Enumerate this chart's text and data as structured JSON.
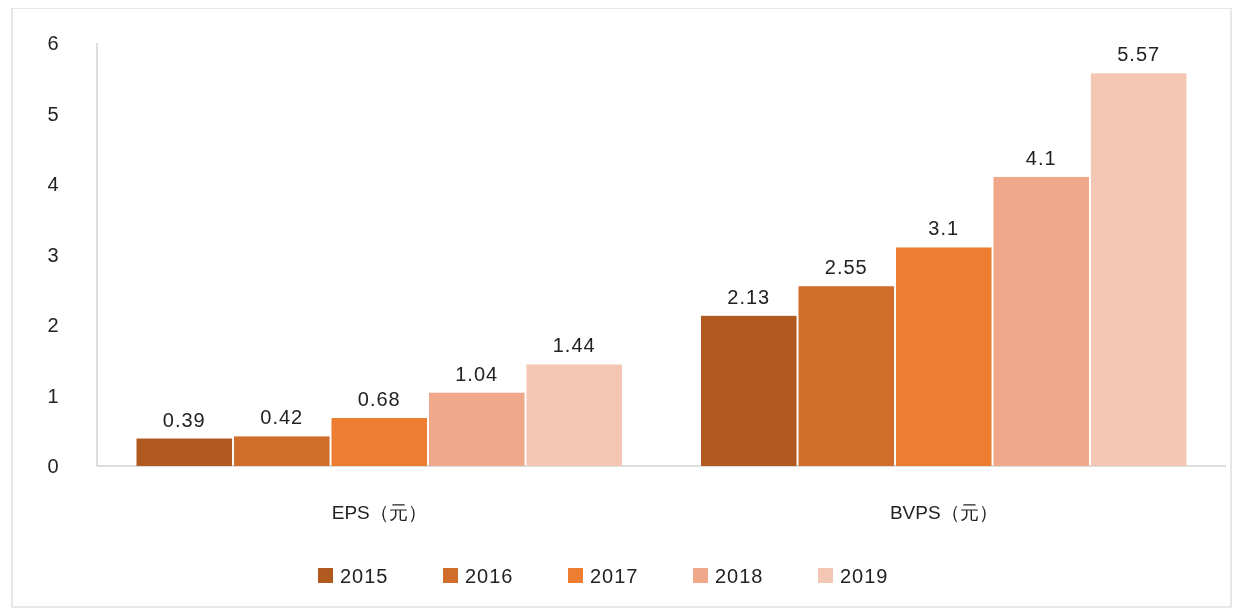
{
  "chart_data": {
    "type": "bar",
    "categories": [
      "EPS（元）",
      "BVPS（元）"
    ],
    "series": [
      {
        "name": "2015",
        "color": "#b05a20",
        "values": [
          0.39,
          2.13
        ]
      },
      {
        "name": "2016",
        "color": "#d06d2b",
        "values": [
          0.42,
          2.55
        ]
      },
      {
        "name": "2017",
        "color": "#ed7d31",
        "values": [
          0.68,
          3.1
        ]
      },
      {
        "name": "2018",
        "color": "#f0a88a",
        "values": [
          1.04,
          4.1
        ]
      },
      {
        "name": "2019",
        "color": "#f4c6b4",
        "values": [
          1.44,
          5.57
        ]
      }
    ],
    "ylim": [
      0,
      6
    ],
    "yticks": [
      0,
      1,
      2,
      3,
      4,
      5,
      6
    ],
    "data_labels": true,
    "grid": false,
    "legend": "bottom"
  }
}
